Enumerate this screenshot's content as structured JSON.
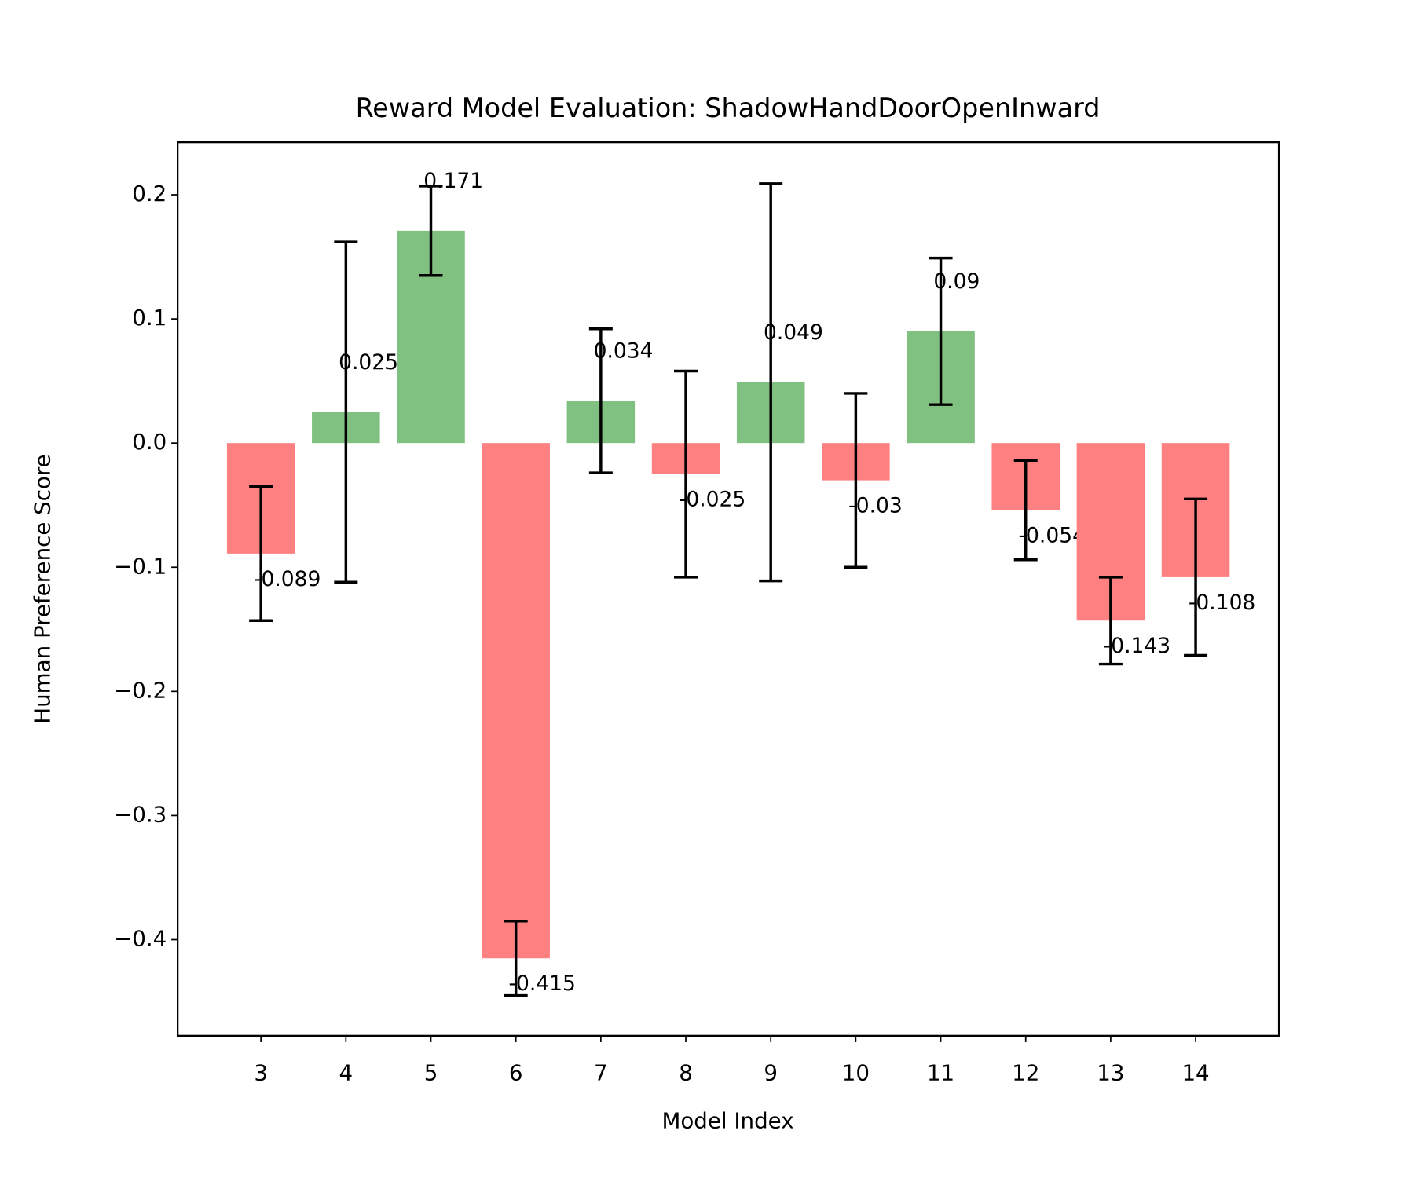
{
  "chart_data": {
    "type": "bar",
    "title": "Reward Model Evaluation: ShadowHandDoorOpenInward",
    "xlabel": "Model Index",
    "ylabel": "Human Preference Score",
    "x": [
      3,
      4,
      5,
      6,
      7,
      8,
      9,
      10,
      11,
      12,
      13,
      14
    ],
    "values": [
      -0.089,
      0.025,
      0.171,
      -0.415,
      0.034,
      -0.025,
      0.049,
      -0.03,
      0.09,
      -0.054,
      -0.143,
      -0.108
    ],
    "errors": [
      0.054,
      0.137,
      0.036,
      0.03,
      0.058,
      0.083,
      0.16,
      0.07,
      0.059,
      0.04,
      0.035,
      0.063
    ],
    "colors": [
      "#ff8080",
      "#80c080",
      "#80c080",
      "#ff8080",
      "#80c080",
      "#ff8080",
      "#80c080",
      "#ff8080",
      "#80c080",
      "#ff8080",
      "#ff8080",
      "#ff8080"
    ],
    "xlim": [
      2.02,
      14.98
    ],
    "xticks": [
      3,
      4,
      5,
      6,
      7,
      8,
      9,
      10,
      11,
      12,
      13,
      14
    ],
    "ylim": [
      -0.4774,
      0.2423
    ],
    "yticks": [
      {
        "value": -0.4,
        "label": "−0.4"
      },
      {
        "value": -0.3,
        "label": "−0.3"
      },
      {
        "value": -0.2,
        "label": "−0.2"
      },
      {
        "value": -0.1,
        "label": "−0.1"
      },
      {
        "value": 0,
        "label": "0.0"
      },
      0.1,
      0.2
    ]
  }
}
